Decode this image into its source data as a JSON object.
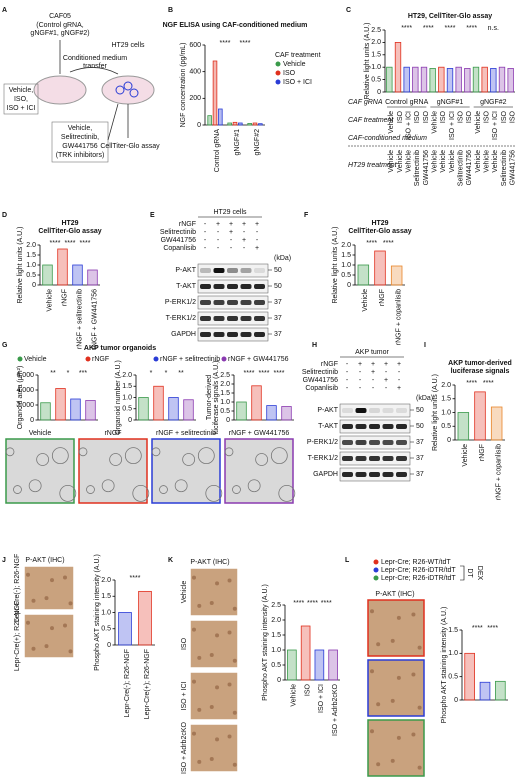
{
  "panel_letters": [
    "A",
    "B",
    "C",
    "D",
    "E",
    "F",
    "G",
    "H",
    "I",
    "J",
    "K",
    "L"
  ],
  "A": {
    "caf": "CAF05",
    "caf_gRNA": [
      "(Control gRNA,",
      "gNGF#1, gNGF#2)"
    ],
    "ht29": "HT29 cells",
    "transfer": [
      "Conditioned medium",
      "transfer"
    ],
    "caf_treatments": [
      {
        "text": "Vehicle,",
        "color": "#3a9a4a"
      },
      {
        "text": "ISO,",
        "color": "#e0301e"
      },
      {
        "text": "ISO + ICI",
        "color": "#2a3cd6"
      }
    ],
    "ht29_treatments": [
      "Vehicle,",
      "Selitrectinib,",
      "GW441756",
      "(TRK inhibitors)"
    ],
    "ht29_color": "#8a3ab0",
    "assay": "CellTiter-Glo assay"
  },
  "B": {
    "type": "bar",
    "title": "NGF ELISA using CAF-conditioned medium",
    "ylabel": "NGF concentration (pg/mL)",
    "categories": [
      "Control gRNA",
      "gNGF#1",
      "gNGF#2"
    ],
    "legend_title": "CAF treatment",
    "series": [
      {
        "name": "Vehicle",
        "color": "#3a9a4a",
        "values": [
          70,
          15,
          12
        ]
      },
      {
        "name": "ISO",
        "color": "#e0301e",
        "values": [
          480,
          20,
          15
        ]
      },
      {
        "name": "ISO + ICI",
        "color": "#2a3cd6",
        "values": [
          120,
          15,
          10
        ]
      }
    ],
    "ylim": [
      0,
      600
    ],
    "yticks": [
      0,
      200,
      400,
      600
    ],
    "annotations": [
      "****",
      "****"
    ]
  },
  "C": {
    "type": "bar",
    "title": "HT29, CellTiter-Glo assay",
    "ylabel": "Relative light units (A.U.)",
    "values": [
      1.0,
      2.0,
      1.0,
      1.0,
      1.0,
      0.95,
      1.0,
      0.95,
      1.0,
      0.95,
      1.0,
      1.0,
      0.95,
      1.0,
      0.95
    ],
    "colors": [
      "#3a9a4a",
      "#e0301e",
      "#2a3cd6",
      "#8a3ab0",
      "#8a3ab0",
      "#3a9a4a",
      "#e0301e",
      "#2a3cd6",
      "#8a3ab0",
      "#8a3ab0",
      "#3a9a4a",
      "#e0301e",
      "#2a3cd6",
      "#8a3ab0",
      "#8a3ab0"
    ],
    "ylim": [
      0,
      2.5
    ],
    "yticks": [
      0,
      0.5,
      {
        "value": 1,
        "label": "1.0"
      },
      {
        "value": 1.5,
        "label": "1.5"
      },
      {
        "value": 2,
        "label": "2.0"
      },
      2.5
    ],
    "annotations": [
      "****",
      "****",
      "****",
      "****",
      "n.s."
    ],
    "groups": [
      "Control gRNA",
      "gNGF#1",
      "gNGF#2"
    ],
    "caf_treatment": [
      "Vehicle",
      "ISO",
      "ISO + ICI",
      "ISO",
      "ISO",
      "Vehicle",
      "ISO",
      "ISO + ICI",
      "ISO",
      "ISO",
      "Vehicle",
      "ISO",
      "ISO + ICI",
      "ISO",
      "ISO"
    ],
    "ht29_treatment": [
      "Vehicle",
      "Vehicle",
      "Vehicle",
      "Selitrectinib",
      "GW441756",
      "Vehicle",
      "Vehicle",
      "Vehicle",
      "Selitrectinib",
      "GW441756",
      "Vehicle",
      "Vehicle",
      "Vehicle",
      "Selitrectinib",
      "GW441756"
    ],
    "row_headers": {
      "medium": "CAF-conditioned medium",
      "gRNA": "CAF gRNA",
      "caf": "CAF treatment",
      "ht29": "HT29 treatment"
    }
  },
  "D": {
    "type": "bar",
    "title": [
      "HT29",
      "CellTiter-Glo assay"
    ],
    "ylabel": "Relative light units (A.U.)",
    "categories": [
      "Vehicle",
      "rNGF",
      "rNGF + selitrectinib",
      "rNGF + GW441756"
    ],
    "values": [
      1.0,
      1.8,
      1.0,
      0.75
    ],
    "colors": [
      "#3a9a4a",
      "#e0301e",
      "#2a3cd6",
      "#8a3ab0"
    ],
    "ylim": [
      0,
      2
    ],
    "yticks": [
      0,
      0.5,
      {
        "value": 1,
        "label": "1.0"
      },
      1.5,
      {
        "value": 2,
        "label": "2.0"
      }
    ],
    "annotations": [
      "****",
      "****",
      "****"
    ]
  },
  "E": {
    "header": "HT29 cells",
    "treatments": [
      "rNGF",
      "Selitrectinib",
      "GW441756",
      "Copanlisib"
    ],
    "signs": [
      [
        "-",
        "+",
        "+",
        "+",
        "+"
      ],
      [
        "-",
        "-",
        "+",
        "-",
        "-"
      ],
      [
        "-",
        "-",
        "-",
        "+",
        "-"
      ],
      [
        "-",
        "-",
        "-",
        "-",
        "+"
      ]
    ],
    "bands": [
      "P-AKT",
      "T-AKT",
      "P-ERK1/2",
      "T-ERK1/2",
      "GAPDH"
    ],
    "kda_title": "(kDa)",
    "kda": [
      "50",
      "50",
      "37",
      "37",
      "37"
    ]
  },
  "F": {
    "type": "bar",
    "title": [
      "HT29",
      "CellTiter-Glo assay"
    ],
    "ylabel": "Relative light units (A.U.)",
    "categories": [
      "Vehicle",
      "rNGF",
      "rNGF + copanlisib"
    ],
    "values": [
      1.0,
      1.7,
      0.95
    ],
    "colors": [
      "#3a9a4a",
      "#e0301e",
      "#e8862a"
    ],
    "ylim": [
      0,
      2
    ],
    "yticks": [
      0,
      0.5,
      {
        "value": 1,
        "label": "1.0"
      },
      1.5,
      {
        "value": 2,
        "label": "2.0"
      }
    ],
    "annotations": [
      "****",
      "****"
    ]
  },
  "G": {
    "title": "AKP tumor organoids",
    "legend": [
      {
        "name": "Vehicle",
        "color": "#3a9a4a"
      },
      {
        "name": "rNGF",
        "color": "#e0301e"
      },
      {
        "name": "rNGF + selitrectinib",
        "color": "#2a3cd6"
      },
      {
        "name": "rNGF + GW441756",
        "color": "#8a3ab0"
      }
    ],
    "charts": [
      {
        "type": "bar",
        "ylabel": "Organoid area (μm²)",
        "values": [
          2300,
          4200,
          2800,
          2600
        ],
        "colors": [
          "#3a9a4a",
          "#e0301e",
          "#2a3cd6",
          "#8a3ab0"
        ],
        "ylim": [
          0,
          6000
        ],
        "yticks": [
          0,
          {
            "value": 2000,
            "label": "2,000"
          },
          {
            "value": 4000,
            "label": "4,000"
          },
          {
            "value": 6000,
            "label": "6,000"
          }
        ],
        "annotations": [
          "**",
          "*",
          "***"
        ]
      },
      {
        "type": "bar",
        "ylabel": "Organoid number (A.U.)",
        "values": [
          1.0,
          1.5,
          1.0,
          0.9
        ],
        "colors": [
          "#3a9a4a",
          "#e0301e",
          "#2a3cd6",
          "#8a3ab0"
        ],
        "ylim": [
          0,
          2
        ],
        "yticks": [
          0,
          0.5,
          {
            "value": 1,
            "label": "1.0"
          },
          1.5,
          {
            "value": 2,
            "label": "2.0"
          }
        ],
        "annotations": [
          "*",
          "*",
          "**"
        ]
      },
      {
        "type": "bar",
        "ylabel": [
          "Tumor-derived",
          "luciferase signals (A.U.)"
        ],
        "values": [
          1.0,
          1.9,
          0.8,
          0.75
        ],
        "colors": [
          "#3a9a4a",
          "#e0301e",
          "#2a3cd6",
          "#8a3ab0"
        ],
        "ylim": [
          0,
          2.5
        ],
        "yticks": [
          0,
          0.5,
          {
            "value": 1,
            "label": "1.0"
          },
          1.5,
          {
            "value": 2,
            "label": "2.0"
          },
          2.5
        ],
        "annotations": [
          "****",
          "****",
          "****"
        ]
      }
    ]
  },
  "H": {
    "header": "AKP tumor",
    "treatments": [
      "rNGF",
      "Selitrectinib",
      "GW441756",
      "Copanlisib"
    ],
    "signs": [
      [
        "-",
        "+",
        "+",
        "+",
        "+"
      ],
      [
        "-",
        "-",
        "+",
        "-",
        "-"
      ],
      [
        "-",
        "-",
        "-",
        "+",
        "-"
      ],
      [
        "-",
        "-",
        "-",
        "-",
        "+"
      ]
    ],
    "bands": [
      "P-AKT",
      "T-AKT",
      "P-ERK1/2",
      "T-ERK1/2",
      "GAPDH"
    ],
    "kda_title": "(kDa)",
    "kda": [
      "50",
      "50",
      "37",
      "37",
      "37"
    ]
  },
  "I": {
    "type": "bar",
    "title": [
      "AKP tumor-derived",
      "luciferase signals"
    ],
    "ylabel": "Relative light units (A.U.)",
    "categories": [
      "Vehicle",
      "rNGF",
      "rNGF + copanlisib"
    ],
    "values": [
      1.0,
      1.75,
      1.2
    ],
    "colors": [
      "#3a9a4a",
      "#e0301e",
      "#e8862a"
    ],
    "ylim": [
      0,
      2
    ],
    "yticks": [
      0,
      0.5,
      {
        "value": 1,
        "label": "1.0"
      },
      1.5,
      {
        "value": 2,
        "label": "2.0"
      }
    ],
    "annotations": [
      "****",
      "****"
    ]
  },
  "J": {
    "ihc_label": "P-AKT (IHC)",
    "chart": {
      "type": "bar",
      "ylabel": "Phospho AKT staining intensity (A.U.)",
      "categories": [
        "Lepr-Cre(-); R26-NGF",
        "Lepr-Cre(+); R26-NGF"
      ],
      "values": [
        1.0,
        1.65
      ],
      "colors": [
        "#2a3cd6",
        "#e0301e"
      ],
      "ylim": [
        0,
        2
      ],
      "yticks": [
        0,
        0.5,
        {
          "value": 1,
          "label": "1.0"
        },
        1.5,
        {
          "value": 2,
          "label": "2.0"
        }
      ],
      "annotations": [
        "****"
      ]
    }
  },
  "K": {
    "ihc_label": "P-AKT (IHC)",
    "chart": {
      "type": "bar",
      "ylabel": "Phospho AKT staining intensity (A.U.)",
      "categories": [
        "Vehicle",
        "ISO",
        "ISO + ICI",
        "ISO + Adrb2cKO"
      ],
      "values": [
        1.0,
        1.8,
        1.0,
        1.0
      ],
      "colors": [
        "#3a9a4a",
        "#e0301e",
        "#2a3cd6",
        "#8a3ab0"
      ],
      "ylim": [
        0,
        2.5
      ],
      "yticks": [
        0,
        0.5,
        {
          "value": 1,
          "label": "1.0"
        },
        1.5,
        {
          "value": 2,
          "label": "2.0"
        },
        2.5
      ],
      "annotations": [
        "****",
        "****",
        "****"
      ]
    }
  },
  "L": {
    "ihc_label": "P-AKT (IHC)",
    "legend": [
      {
        "name": "Lepr-Cre; R26-WT/tdT",
        "color": "#e0301e"
      },
      {
        "name": "Lepr-Cre; R26-iDTR/tdT",
        "color": "#2a3cd6"
      },
      {
        "name": "Lepr-Cre; R26-iDTR/tdT",
        "color": "#3a9a4a"
      }
    ],
    "dt": "DT",
    "dex": "DEX",
    "chart": {
      "type": "bar",
      "ylabel": "Phospho AKT staining intensity (A.U.)",
      "values": [
        1.0,
        0.38,
        0.4
      ],
      "colors": [
        "#e0301e",
        "#2a3cd6",
        "#3a9a4a"
      ],
      "ylim": [
        0,
        1.5
      ],
      "yticks": [
        0,
        0.5,
        {
          "value": 1,
          "label": "1.0"
        },
        1.5
      ],
      "annotations": [
        "****",
        "****"
      ]
    }
  }
}
